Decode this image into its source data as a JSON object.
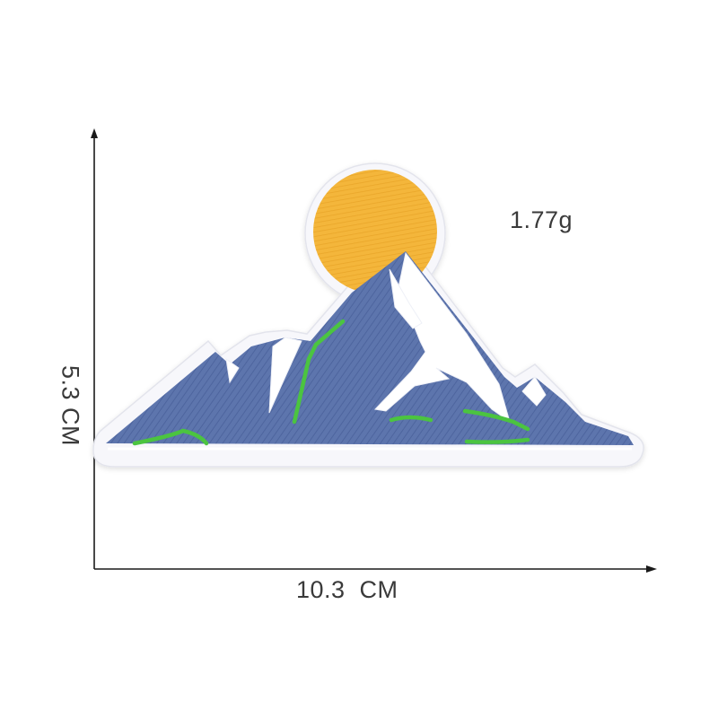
{
  "measurements": {
    "weight": "1.77g",
    "width": "10.3  CM",
    "height": "5.3 CM"
  },
  "product": {
    "type": "embroidered iron-on patch",
    "motif": "mountain-with-sun",
    "colors": {
      "sun": "#f4b63a",
      "sun_stitch": "#e9a62a",
      "mountain": "#5d74ad",
      "mountain_dark": "#4e659e",
      "snow": "#ffffff",
      "grass": "#4cc43f",
      "border": "#f7f7fb"
    }
  },
  "icons": {
    "horizontal_axis": "arrow-right-icon",
    "vertical_axis": "arrow-up-icon"
  }
}
